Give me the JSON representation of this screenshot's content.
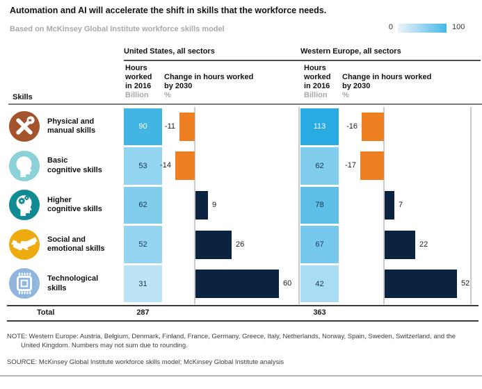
{
  "title": "Automation and AI will accelerate the shift in skills that the workforce needs.",
  "subtitle": "Based on McKinsey Global Institute workforce skills model",
  "legend": {
    "min": "0",
    "max": "100",
    "gradient_from": "#edf3f8",
    "gradient_to": "#45b8e8"
  },
  "skills_header": "Skills",
  "total_label": "Total",
  "groups": [
    {
      "name": "United States, all sectors",
      "hours_header_lines": [
        "Hours",
        "worked",
        "in 2016"
      ],
      "hours_unit": "Billion",
      "change_header_lines": [
        "Change in hours worked",
        "by 2030"
      ],
      "change_unit": "%",
      "total": "287"
    },
    {
      "name": "Western Europe, all sectors",
      "hours_header_lines": [
        "Hours",
        "worked",
        "in 2016"
      ],
      "hours_unit": "Billion",
      "change_header_lines": [
        "Change in hours worked",
        "by 2030"
      ],
      "change_unit": "%",
      "total": "363"
    }
  ],
  "rows": [
    {
      "skill": "Physical and manual skills",
      "skill_lines": [
        "Physical and",
        "manual skills"
      ],
      "icon": "tools-icon",
      "icon_color": "#a3542c",
      "us_hours": 90,
      "us_change": -11,
      "we_hours": 113,
      "we_change": -16
    },
    {
      "skill": "Basic cognitive skills",
      "skill_lines": [
        "Basic",
        "cognitive skills"
      ],
      "icon": "head-icon",
      "icon_color": "#8bd1d8",
      "us_hours": 53,
      "us_change": -14,
      "we_hours": 62,
      "we_change": -17
    },
    {
      "skill": "Higher cognitive skills",
      "skill_lines": [
        "Higher",
        "cognitive skills"
      ],
      "icon": "head-gears-icon",
      "icon_color": "#108a93",
      "us_hours": 62,
      "us_change": 9,
      "we_hours": 78,
      "we_change": 7
    },
    {
      "skill": "Social and emotional skills",
      "skill_lines": [
        "Social and",
        "emotional skills"
      ],
      "icon": "handshake-icon",
      "icon_color": "#edab10",
      "us_hours": 52,
      "us_change": 26,
      "we_hours": 67,
      "we_change": 22
    },
    {
      "skill": "Technological skills",
      "skill_lines": [
        "Technological",
        "skills"
      ],
      "icon": "chip-icon",
      "icon_color": "#90b6de",
      "us_hours": 31,
      "us_change": 60,
      "we_hours": 42,
      "we_change": 52
    }
  ],
  "colors": {
    "positive_bar": "#0c2340",
    "negative_bar": "#ee7f22",
    "heat_low": "#e2f3fb",
    "heat_high": "#29abe2"
  },
  "note_lines": [
    "NOTE: Western Europe: Austria, Belgium, Denmark, Finland, France, Germany, Greece, Italy, Netherlands, Norway, Spain, Sweden, Switzerland, and the",
    "United Kingdom. Numbers may not sum due to rounding."
  ],
  "source": "SOURCE:  McKinsey Global Institute workforce skills model; McKinsey Global Institute analysis",
  "chart_data": {
    "type": "bar",
    "categories": [
      "Physical and manual skills",
      "Basic cognitive skills",
      "Higher cognitive skills",
      "Social and emotional skills",
      "Technological skills"
    ],
    "series": [
      {
        "name": "United States hours worked in 2016 (billion)",
        "values": [
          90,
          53,
          62,
          52,
          31
        ]
      },
      {
        "name": "United States change in hours worked by 2030 (%)",
        "values": [
          -11,
          -14,
          9,
          26,
          60
        ]
      },
      {
        "name": "Western Europe hours worked in 2016 (billion)",
        "values": [
          113,
          62,
          78,
          67,
          42
        ]
      },
      {
        "name": "Western Europe change in hours worked by 2030 (%)",
        "values": [
          -16,
          -17,
          7,
          22,
          52
        ]
      }
    ],
    "totals": {
      "United States": "287",
      "Western Europe": "363"
    },
    "title": "Automation and AI will accelerate the shift in skills that the workforce needs.",
    "subtitle": "Based on McKinsey Global Institute workforce skills model",
    "heatmap_scale": {
      "min": 0,
      "max": 100
    },
    "legend_position": "top-right",
    "grid": false
  }
}
